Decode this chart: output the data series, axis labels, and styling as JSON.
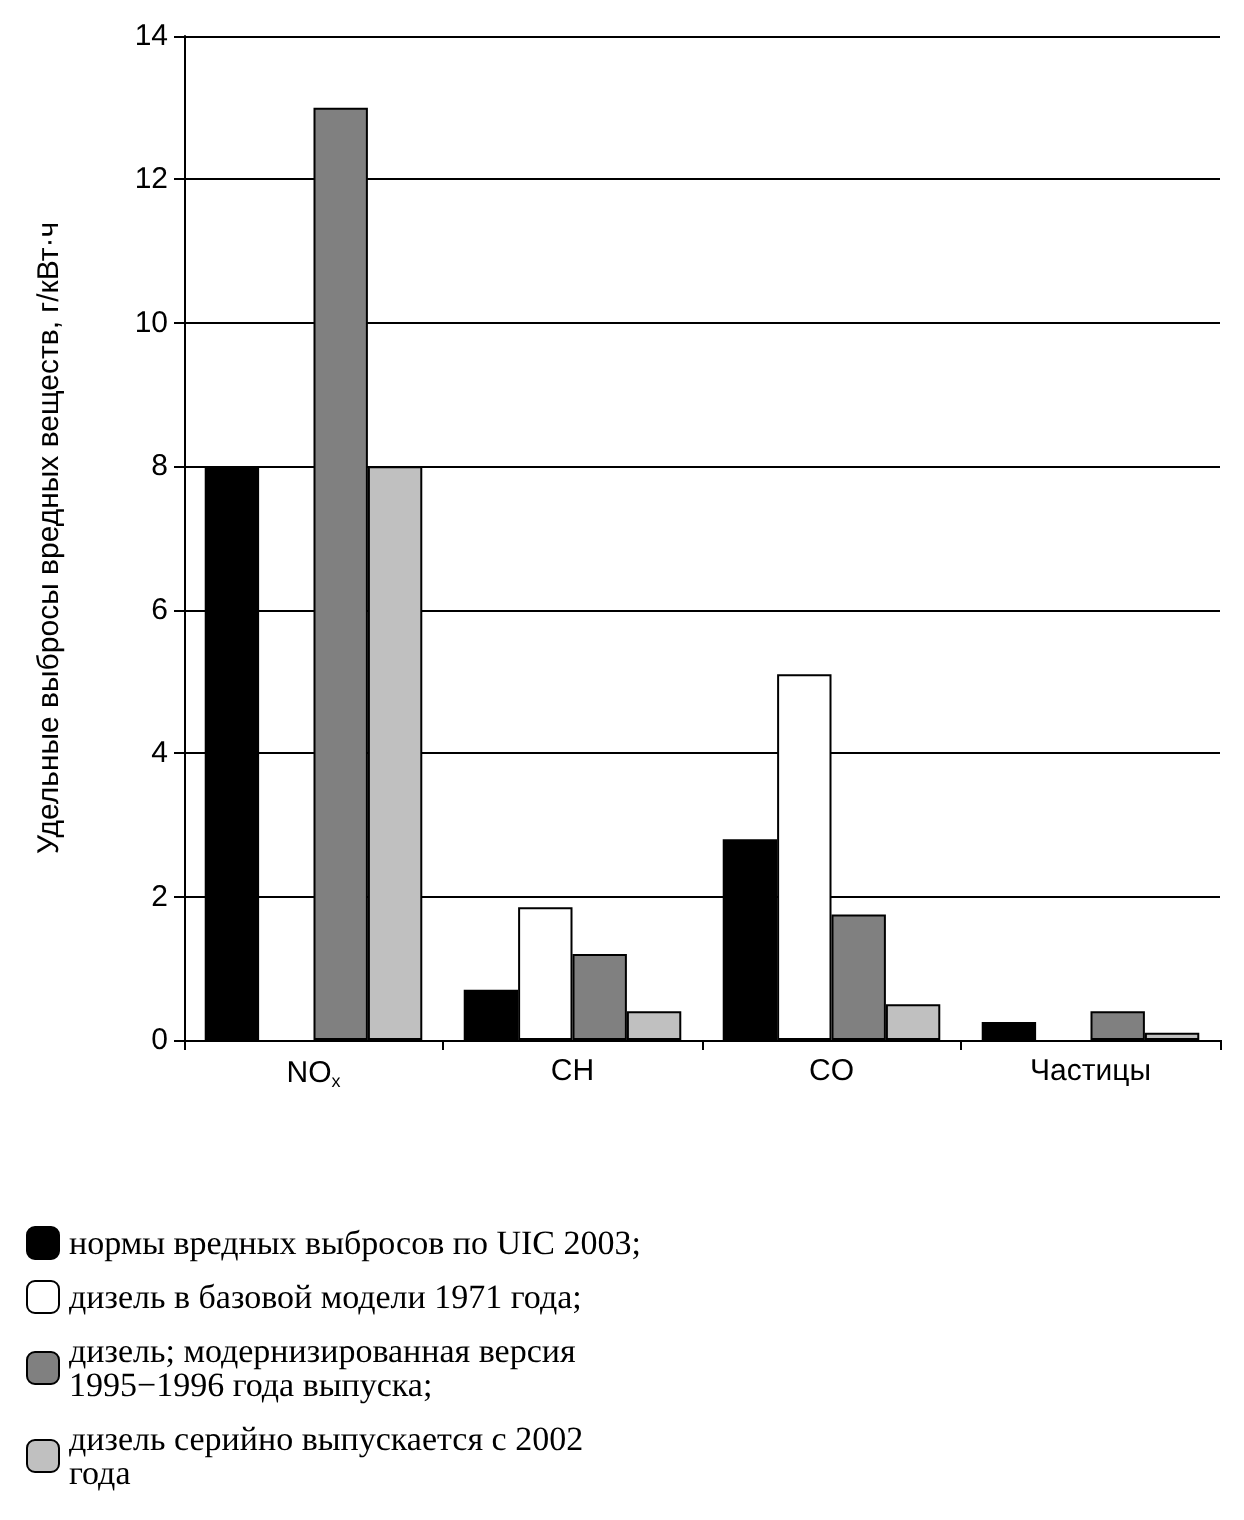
{
  "chart_data": {
    "type": "bar",
    "ylabel": "Удельные выбросы вредных веществ, г/кВт·ч",
    "categories": [
      "NO$_{x}$",
      "CH",
      "CO",
      "Частицы"
    ],
    "series": [
      {
        "name": "нормы вредных выбросов по UIC 2003;",
        "color": "#000000",
        "values": [
          8,
          0.7,
          2.8,
          0.25
        ]
      },
      {
        "name": "дизель в базовой модели 1971 года;",
        "color": "#ffffff",
        "values": [
          null,
          1.85,
          5.1,
          null
        ]
      },
      {
        "name": "дизель; модернизированная версия 1995−1996 года выпуска;",
        "color": "#808080",
        "values": [
          13,
          1.2,
          1.75,
          0.4
        ]
      },
      {
        "name": "дизель серийно выпускается с 2002 года",
        "color": "#c0c0c0",
        "values": [
          8,
          0.4,
          0.5,
          0.1
        ]
      }
    ],
    "ylim": [
      0,
      14
    ],
    "yticks": [
      0,
      2,
      4,
      6,
      8,
      10,
      12,
      14
    ],
    "grid": "y",
    "legend": "bottom"
  }
}
